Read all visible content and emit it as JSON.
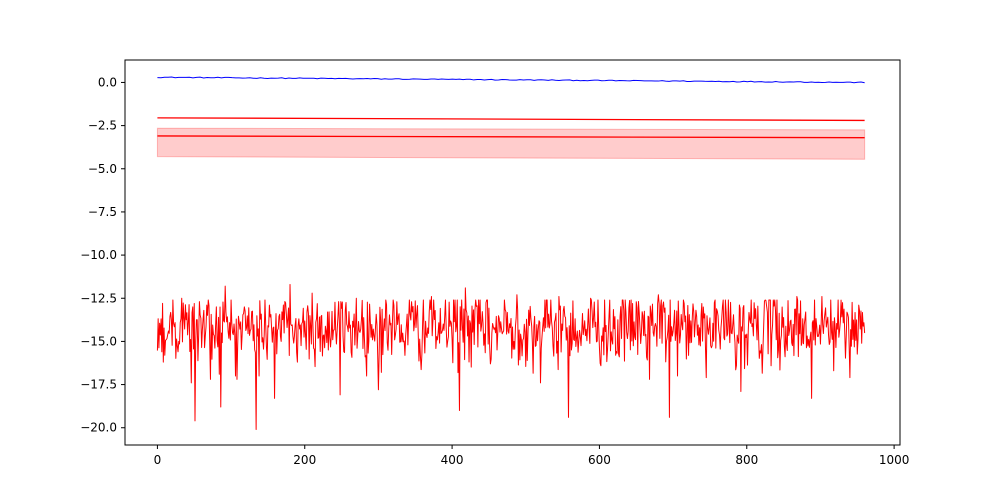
{
  "chart_data": {
    "type": "line",
    "title": "",
    "xlabel": "",
    "ylabel": "",
    "xlim": [
      -44,
      1008
    ],
    "ylim": [
      -21.0,
      1.3
    ],
    "grid": false,
    "x_ticks": [
      0,
      200,
      400,
      600,
      800,
      1000
    ],
    "y_ticks": [
      0.0,
      -2.5,
      -5.0,
      -7.5,
      -10.0,
      -12.5,
      -15.0,
      -17.5,
      -20.0
    ],
    "x_tick_labels": [
      "0",
      "200",
      "400",
      "600",
      "800",
      "1000"
    ],
    "y_tick_labels": [
      "0.0",
      "−2.5",
      "−5.0",
      "−7.5",
      "−10.0",
      "−12.5",
      "−15.0",
      "−17.5",
      "−20.0"
    ],
    "series": [
      {
        "color": "#0000ff",
        "style": "line",
        "x": [
          0,
          960
        ],
        "y": [
          0.3,
          0.0
        ]
      },
      {
        "color": "#ff0000",
        "style": "line",
        "x": [
          0,
          960
        ],
        "y": [
          -2.05,
          -2.2
        ]
      },
      {
        "color": "#ff0000",
        "style": "line",
        "x": [
          0,
          960
        ],
        "y": [
          -3.1,
          -3.2
        ]
      },
      {
        "color": "#ff0000",
        "style": "band",
        "x": [
          0,
          960
        ],
        "y_upper": [
          -2.65,
          -2.75
        ],
        "y_lower": [
          -4.3,
          -4.45
        ]
      },
      {
        "color": "#ff0000",
        "style": "noisy-line",
        "x_range": [
          0,
          960
        ],
        "mean": -14.2,
        "std": 1.05,
        "min": -20.1,
        "max": -11.7,
        "points": 961,
        "spikes": [
          [
            10,
            -15.8
          ],
          [
            21,
            -12.6
          ],
          [
            28,
            -15.6
          ],
          [
            33,
            -12.5
          ],
          [
            46,
            -17.4
          ],
          [
            48,
            -13.0
          ],
          [
            51,
            -19.6
          ],
          [
            63,
            -13.2
          ],
          [
            72,
            -17.2
          ],
          [
            80,
            -13.0
          ],
          [
            86,
            -18.8
          ],
          [
            92,
            -11.8
          ],
          [
            108,
            -17.2
          ],
          [
            118,
            -13.0
          ],
          [
            134,
            -20.1
          ],
          [
            138,
            -17.0
          ],
          [
            152,
            -12.9
          ],
          [
            159,
            -18.3
          ],
          [
            168,
            -15.0
          ],
          [
            180,
            -11.7
          ],
          [
            190,
            -16.2
          ],
          [
            210,
            -12.2
          ],
          [
            232,
            -15.5
          ],
          [
            248,
            -18.1
          ],
          [
            270,
            -12.5
          ],
          [
            300,
            -17.8
          ],
          [
            340,
            -15.2
          ],
          [
            372,
            -12.4
          ],
          [
            410,
            -19.0
          ],
          [
            418,
            -11.9
          ],
          [
            452,
            -16.3
          ],
          [
            488,
            -12.3
          ],
          [
            520,
            -17.4
          ],
          [
            545,
            -12.4
          ],
          [
            558,
            -19.4
          ],
          [
            588,
            -12.5
          ],
          [
            622,
            -15.8
          ],
          [
            650,
            -12.7
          ],
          [
            668,
            -17.2
          ],
          [
            680,
            -12.3
          ],
          [
            695,
            -19.4
          ],
          [
            715,
            -12.8
          ],
          [
            745,
            -17.1
          ],
          [
            775,
            -12.6
          ],
          [
            792,
            -17.9
          ],
          [
            812,
            -13.1
          ],
          [
            843,
            -15.5
          ],
          [
            868,
            -12.4
          ],
          [
            888,
            -18.3
          ],
          [
            902,
            -12.4
          ],
          [
            918,
            -16.7
          ],
          [
            940,
            -17.1
          ],
          [
            952,
            -12.9
          ]
        ]
      }
    ]
  }
}
